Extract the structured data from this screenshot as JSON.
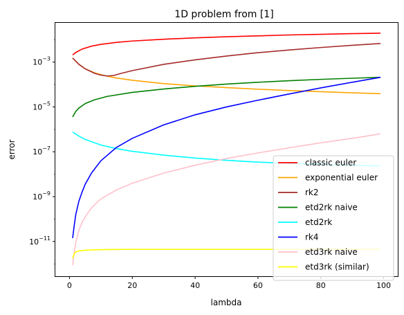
{
  "chart_data": {
    "type": "line",
    "title": "1D problem from [1]",
    "xlabel": "lambda",
    "ylabel": "error",
    "yscale": "log",
    "xlim": [
      -4.5,
      104.5
    ],
    "ylim_exp": [
      -12.55,
      -1.25
    ],
    "xticks": [
      0,
      20,
      40,
      60,
      80,
      100
    ],
    "yticks_exp": [
      -11,
      -9,
      -7,
      -5,
      -3
    ],
    "grid": false,
    "legend_position": "lower-right",
    "series": [
      {
        "name": "classic euler",
        "color": "#ff0000",
        "x": [
          1,
          2,
          4,
          7,
          10,
          15,
          20,
          30,
          40,
          50,
          60,
          70,
          80,
          90,
          99
        ],
        "y_exp": [
          -2.68,
          -2.57,
          -2.42,
          -2.29,
          -2.21,
          -2.12,
          -2.06,
          -1.98,
          -1.92,
          -1.87,
          -1.83,
          -1.79,
          -1.76,
          -1.73,
          -1.71
        ]
      },
      {
        "name": "exponential euler",
        "color": "#ffa500",
        "x": [
          1,
          3,
          5,
          8,
          12,
          15,
          20,
          30,
          40,
          50,
          60,
          70,
          80,
          90,
          99
        ],
        "y_exp": [
          -2.82,
          -3.1,
          -3.3,
          -3.48,
          -3.63,
          -3.71,
          -3.81,
          -3.96,
          -4.06,
          -4.14,
          -4.21,
          -4.27,
          -4.32,
          -4.37,
          -4.41
        ]
      },
      {
        "name": "rk2",
        "color": "#a52a2a",
        "x": [
          1,
          3,
          5,
          8,
          10,
          12,
          14,
          16,
          20,
          30,
          40,
          50,
          60,
          70,
          80,
          90,
          99
        ],
        "y_exp": [
          -2.82,
          -3.1,
          -3.3,
          -3.5,
          -3.58,
          -3.62,
          -3.6,
          -3.52,
          -3.38,
          -3.1,
          -2.9,
          -2.73,
          -2.58,
          -2.46,
          -2.35,
          -2.25,
          -2.17
        ]
      },
      {
        "name": "etd2rk naive",
        "color": "#008000",
        "x": [
          1,
          2,
          3,
          5,
          8,
          12,
          20,
          30,
          40,
          50,
          60,
          70,
          80,
          90,
          99
        ],
        "y_exp": [
          -5.45,
          -5.2,
          -5.05,
          -4.85,
          -4.68,
          -4.53,
          -4.35,
          -4.2,
          -4.08,
          -3.98,
          -3.9,
          -3.83,
          -3.77,
          -3.72,
          -3.68
        ]
      },
      {
        "name": "etd2rk",
        "color": "#00ffff",
        "x": [
          1,
          3,
          5,
          10,
          15,
          20,
          30,
          40,
          50,
          60,
          70,
          80,
          90,
          99
        ],
        "y_exp": [
          -6.12,
          -6.3,
          -6.45,
          -6.7,
          -6.86,
          -6.98,
          -7.15,
          -7.28,
          -7.38,
          -7.46,
          -7.52,
          -7.56,
          -7.6,
          -7.63
        ]
      },
      {
        "name": "rk4",
        "color": "#0000ff",
        "x": [
          1,
          1.5,
          2,
          3,
          4,
          5,
          7,
          10,
          15,
          20,
          30,
          40,
          50,
          60,
          70,
          80,
          90,
          99
        ],
        "y_exp": [
          -10.85,
          -10.3,
          -9.8,
          -9.2,
          -8.8,
          -8.45,
          -7.95,
          -7.4,
          -6.8,
          -6.4,
          -5.8,
          -5.35,
          -5.0,
          -4.7,
          -4.42,
          -4.15,
          -3.9,
          -3.68
        ]
      },
      {
        "name": "etd3rk naive",
        "color": "#ffc0cb",
        "x": [
          1,
          1.5,
          2,
          3,
          4,
          5,
          7,
          10,
          15,
          20,
          30,
          40,
          50,
          60,
          70,
          80,
          90,
          99
        ],
        "y_exp": [
          -12.05,
          -11.5,
          -11.05,
          -10.5,
          -10.15,
          -9.9,
          -9.5,
          -9.1,
          -8.7,
          -8.4,
          -7.95,
          -7.6,
          -7.3,
          -7.05,
          -6.82,
          -6.6,
          -6.4,
          -6.2
        ]
      },
      {
        "name": "etd3rk (similar)",
        "color": "#ffff00",
        "x": [
          1,
          1.5,
          2,
          3,
          5,
          8,
          12,
          20,
          40,
          60,
          80,
          99
        ],
        "y_exp": [
          -11.75,
          -11.55,
          -11.47,
          -11.42,
          -11.39,
          -11.37,
          -11.36,
          -11.35,
          -11.35,
          -11.35,
          -11.35,
          -11.35
        ]
      }
    ]
  }
}
